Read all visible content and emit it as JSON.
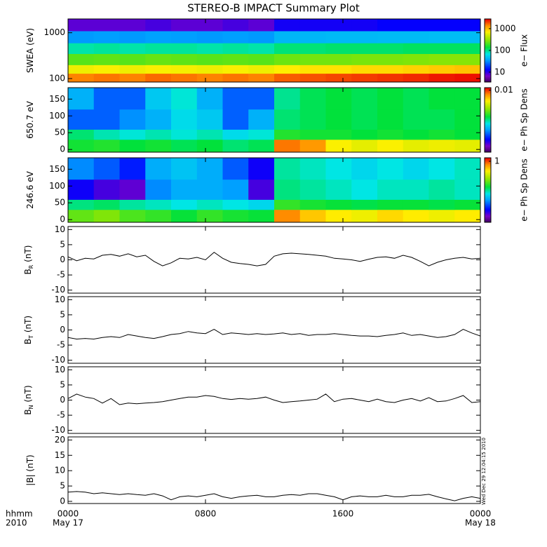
{
  "title": "STEREO-B IMPACT Summary Plot",
  "timestamp": "Wed Dec 29 12:04:15 2010",
  "chart_data": [
    {
      "type": "heatmap",
      "ylabel": "SWEA (eV)",
      "ylog": true,
      "ylim": [
        84,
        2000
      ],
      "yticks": [
        100,
        1000
      ],
      "xlim": [
        0,
        24
      ],
      "xticks": [
        0,
        8,
        16,
        24
      ],
      "colormap": "rainbow",
      "zlabel": "e− Flux",
      "zlog": true,
      "zlim": [
        3.5,
        2800
      ],
      "zticks": [
        10,
        100,
        1000
      ],
      "x_edges": [
        0,
        1.5,
        3,
        4.5,
        6,
        7.5,
        9,
        10.5,
        12,
        13.5,
        15,
        16.5,
        18,
        19.5,
        21,
        22.5,
        24
      ],
      "y_edges": [
        84,
        130,
        200,
        350,
        600,
        1100,
        2000
      ],
      "z": [
        [
          1500,
          1600,
          1500,
          1700,
          1600,
          1500,
          1600,
          1500,
          1800,
          1900,
          2000,
          2100,
          2200,
          2300,
          2500,
          2600
        ],
        [
          650,
          700,
          650,
          700,
          680,
          650,
          700,
          650,
          750,
          800,
          800,
          850,
          850,
          900,
          950,
          1000
        ],
        [
          230,
          240,
          230,
          250,
          240,
          230,
          240,
          230,
          260,
          270,
          270,
          280,
          280,
          290,
          300,
          300
        ],
        [
          90,
          95,
          90,
          95,
          95,
          90,
          95,
          90,
          110,
          110,
          115,
          115,
          115,
          120,
          120,
          120
        ],
        [
          35,
          36,
          35,
          37,
          36,
          35,
          36,
          35,
          45,
          45,
          46,
          46,
          47,
          47,
          48,
          48
        ],
        [
          8,
          8,
          8,
          9,
          8,
          8,
          9,
          8,
          12,
          12,
          12,
          12,
          13,
          13,
          13,
          13
        ]
      ]
    },
    {
      "type": "heatmap",
      "ylabel": "650.7 eV",
      "ylim": [
        -8,
        184
      ],
      "yticks": [
        0,
        50,
        100,
        150
      ],
      "xlim": [
        0,
        24
      ],
      "xticks": [
        0,
        8,
        16,
        24
      ],
      "colormap": "rainbow",
      "zlabel": "e− Ph Sp Dens",
      "zlog": true,
      "zlim": [
        0.0001,
        0.012
      ],
      "zticks": [
        0.01
      ],
      "x_edges": [
        0,
        1.5,
        3,
        4.5,
        6,
        7.5,
        9,
        10.5,
        12,
        13.5,
        15,
        16.5,
        18,
        19.5,
        21,
        22.5,
        24
      ],
      "y_edges": [
        -8,
        30,
        60,
        120,
        184
      ],
      "z": [
        [
          0.0015,
          0.0016,
          0.0014,
          0.0015,
          0.0013,
          0.0014,
          0.0012,
          0.0013,
          0.008,
          0.007,
          0.0045,
          0.004,
          0.0045,
          0.004,
          0.0042,
          0.004
        ],
        [
          0.0012,
          0.001,
          0.0009,
          0.001,
          0.0009,
          0.001,
          0.0008,
          0.0009,
          0.0016,
          0.0015,
          0.0015,
          0.0014,
          0.0015,
          0.0014,
          0.0015,
          0.0014
        ],
        [
          0.0004,
          0.0004,
          0.0005,
          0.0006,
          0.0008,
          0.0007,
          0.0004,
          0.0006,
          0.0012,
          0.0013,
          0.0014,
          0.0013,
          0.0014,
          0.0013,
          0.0013,
          0.0014
        ],
        [
          0.0006,
          0.0004,
          0.0004,
          0.0007,
          0.0009,
          0.0006,
          0.0004,
          0.0004,
          0.0011,
          0.0013,
          0.0014,
          0.0013,
          0.0014,
          0.0013,
          0.0014,
          0.0014
        ]
      ]
    },
    {
      "type": "heatmap",
      "ylabel": "246.6 eV",
      "ylim": [
        -8,
        184
      ],
      "yticks": [
        0,
        50,
        100,
        150
      ],
      "xlim": [
        0,
        24
      ],
      "xticks": [
        0,
        8,
        16,
        24
      ],
      "colormap": "rainbow",
      "zlabel": "e− Ph Sp Dens",
      "zlog": true,
      "zlim": [
        0.01,
        1.3
      ],
      "zticks": [
        1
      ],
      "x_edges": [
        0,
        1.5,
        3,
        4.5,
        6,
        7.5,
        9,
        10.5,
        12,
        13.5,
        15,
        16.5,
        18,
        19.5,
        21,
        22.5,
        24
      ],
      "y_edges": [
        -8,
        30,
        60,
        120,
        184
      ],
      "z": [
        [
          0.22,
          0.25,
          0.2,
          0.18,
          0.15,
          0.18,
          0.16,
          0.15,
          0.8,
          0.6,
          0.5,
          0.45,
          0.55,
          0.5,
          0.45,
          0.5
        ],
        [
          0.12,
          0.13,
          0.11,
          0.1,
          0.09,
          0.1,
          0.09,
          0.08,
          0.18,
          0.16,
          0.15,
          0.14,
          0.15,
          0.15,
          0.14,
          0.15
        ],
        [
          0.025,
          0.02,
          0.018,
          0.05,
          0.06,
          0.06,
          0.055,
          0.02,
          0.12,
          0.11,
          0.1,
          0.09,
          0.1,
          0.1,
          0.11,
          0.1
        ],
        [
          0.05,
          0.04,
          0.03,
          0.06,
          0.07,
          0.06,
          0.04,
          0.025,
          0.11,
          0.1,
          0.09,
          0.08,
          0.09,
          0.08,
          0.09,
          0.1
        ]
      ]
    },
    {
      "type": "line",
      "ylabel": "B",
      "ylabel_sub": "R",
      "ylabel_unit": " (nT)",
      "color": "#000000",
      "ylim": [
        -11,
        11
      ],
      "yticks": [
        -10,
        -5,
        0,
        5,
        10
      ],
      "xlim": [
        0,
        24
      ],
      "xticks": [
        0,
        8,
        16,
        24
      ],
      "x": [
        0,
        0.5,
        1,
        1.5,
        2,
        2.5,
        3,
        3.5,
        4,
        4.5,
        5,
        5.5,
        6,
        6.5,
        7,
        7.5,
        8,
        8.5,
        9,
        9.5,
        10,
        10.5,
        11,
        11.5,
        12,
        12.5,
        13,
        13.5,
        14,
        14.5,
        15,
        15.5,
        16,
        16.5,
        17,
        17.5,
        18,
        18.5,
        19,
        19.5,
        20,
        20.5,
        21,
        21.5,
        22,
        22.5,
        23,
        23.5,
        24
      ],
      "values": [
        1,
        -0.3,
        0.5,
        0.3,
        1.5,
        1.8,
        1.2,
        2,
        1,
        1.5,
        -0.5,
        -2,
        -1,
        0.5,
        0.3,
        0.8,
        0,
        2.5,
        0.5,
        -0.8,
        -1.2,
        -1.5,
        -2,
        -1.5,
        1.2,
        2,
        2.2,
        2,
        1.8,
        1.5,
        1.2,
        0.5,
        0.3,
        0,
        -0.5,
        0.2,
        0.8,
        1,
        0.5,
        1.5,
        0.8,
        -0.5,
        -2,
        -0.8,
        0,
        0.5,
        0.8,
        0.3,
        0.5
      ]
    },
    {
      "type": "line",
      "ylabel": "B",
      "ylabel_sub": "T",
      "ylabel_unit": " (nT)",
      "color": "#000000",
      "ylim": [
        -11,
        11
      ],
      "yticks": [
        -10,
        -5,
        0,
        5,
        10
      ],
      "xlim": [
        0,
        24
      ],
      "xticks": [
        0,
        8,
        16,
        24
      ],
      "x": [
        0,
        0.5,
        1,
        1.5,
        2,
        2.5,
        3,
        3.5,
        4,
        4.5,
        5,
        5.5,
        6,
        6.5,
        7,
        7.5,
        8,
        8.5,
        9,
        9.5,
        10,
        10.5,
        11,
        11.5,
        12,
        12.5,
        13,
        13.5,
        14,
        14.5,
        15,
        15.5,
        16,
        16.5,
        17,
        17.5,
        18,
        18.5,
        19,
        19.5,
        20,
        20.5,
        21,
        21.5,
        22,
        22.5,
        23,
        23.5,
        24
      ],
      "values": [
        -2.5,
        -3,
        -2.8,
        -3,
        -2.5,
        -2.2,
        -2.5,
        -1.5,
        -2,
        -2.5,
        -2.8,
        -2.2,
        -1.5,
        -1.2,
        -0.5,
        -1,
        -1.2,
        0.2,
        -1.5,
        -1,
        -1.2,
        -1.5,
        -1.2,
        -1.5,
        -1.3,
        -1,
        -1.5,
        -1.2,
        -1.8,
        -1.5,
        -1.5,
        -1.2,
        -1.5,
        -1.8,
        -2,
        -2,
        -2.2,
        -1.8,
        -1.5,
        -1,
        -1.8,
        -1.5,
        -2,
        -2.5,
        -2.2,
        -1.5,
        0.2,
        -1,
        -2
      ]
    },
    {
      "type": "line",
      "ylabel": "B",
      "ylabel_sub": "N",
      "ylabel_unit": " (nT)",
      "color": "#000000",
      "ylim": [
        -11,
        11
      ],
      "yticks": [
        -10,
        -5,
        0,
        5,
        10
      ],
      "xlim": [
        0,
        24
      ],
      "xticks": [
        0,
        8,
        16,
        24
      ],
      "x": [
        0,
        0.5,
        1,
        1.5,
        2,
        2.5,
        3,
        3.5,
        4,
        4.5,
        5,
        5.5,
        6,
        6.5,
        7,
        7.5,
        8,
        8.5,
        9,
        9.5,
        10,
        10.5,
        11,
        11.5,
        12,
        12.5,
        13,
        13.5,
        14,
        14.5,
        15,
        15.5,
        16,
        16.5,
        17,
        17.5,
        18,
        18.5,
        19,
        19.5,
        20,
        20.5,
        21,
        21.5,
        22,
        22.5,
        23,
        23.5,
        24
      ],
      "values": [
        0.5,
        2,
        1,
        0.5,
        -1,
        0.5,
        -1.5,
        -1,
        -1.2,
        -1,
        -0.8,
        -0.5,
        0,
        0.5,
        1,
        1,
        1.5,
        1.2,
        0.5,
        0.2,
        0.5,
        0.3,
        0.5,
        1,
        0,
        -0.8,
        -0.5,
        -0.3,
        0,
        0.3,
        2,
        -0.5,
        0.3,
        0.5,
        0,
        -0.5,
        0.3,
        -0.5,
        -0.8,
        0,
        0.5,
        -0.3,
        0.8,
        -0.5,
        -0.3,
        0.5,
        1.5,
        -0.8,
        -0.5
      ]
    },
    {
      "type": "line",
      "ylabel": "|B| (nT)",
      "color": "#000000",
      "ylim": [
        -0.7,
        21
      ],
      "yticks": [
        0,
        5,
        10,
        15,
        20
      ],
      "xlim": [
        0,
        24
      ],
      "xticks": [
        {
          "value": 0,
          "label": "0000"
        },
        {
          "value": 8,
          "label": "0800"
        },
        {
          "value": 16,
          "label": "1600"
        },
        {
          "value": 24,
          "label": "0000"
        }
      ],
      "xtick_dates": [
        {
          "value": 0,
          "label": "May 17"
        },
        {
          "value": 24,
          "label": "May 18"
        }
      ],
      "xlabel": "hhmm",
      "year": "2010",
      "x": [
        0,
        0.5,
        1,
        1.5,
        2,
        2.5,
        3,
        3.5,
        4,
        4.5,
        5,
        5.5,
        6,
        6.5,
        7,
        7.5,
        8,
        8.5,
        9,
        9.5,
        10,
        10.5,
        11,
        11.5,
        12,
        12.5,
        13,
        13.5,
        14,
        14.5,
        15,
        15.5,
        16,
        16.5,
        17,
        17.5,
        18,
        18.5,
        19,
        19.5,
        20,
        20.5,
        21,
        21.5,
        22,
        22.5,
        23,
        23.5,
        24
      ],
      "values": [
        3,
        3.2,
        3,
        2.5,
        2.8,
        2.5,
        2.2,
        2.5,
        2.2,
        2,
        2.5,
        1.8,
        0.5,
        1.5,
        1.8,
        1.5,
        2,
        2.5,
        1.5,
        1,
        1.5,
        1.8,
        2,
        1.5,
        1.5,
        2,
        2.2,
        2,
        2.5,
        2.5,
        2,
        1.5,
        0.5,
        1.5,
        1.8,
        1.5,
        1.5,
        2,
        1.5,
        1.5,
        2,
        2,
        2.3,
        1.5,
        0.8,
        0.2,
        1,
        1.5,
        1
      ]
    }
  ]
}
